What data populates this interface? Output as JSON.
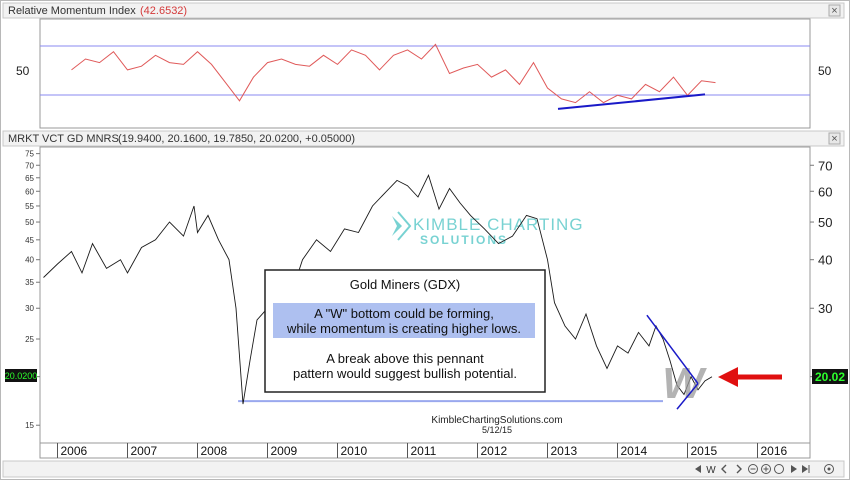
{
  "rmi_panel": {
    "title": "Relative Momentum Index",
    "value": "(42.6532)",
    "close_icon": "×",
    "axis_label_left": "50",
    "axis_label_right": "50"
  },
  "price_panel": {
    "title": "MRKT VCT GD MNRS",
    "ohlc": "(19.9400, 20.1600, 19.7850, 20.0200, +0.05000)",
    "close_icon": "×",
    "last_value_left": "20.0200",
    "last_value_right": "20.02"
  },
  "annotation": {
    "heading": "Gold Miners (GDX)",
    "highlight_line1": "A \"W\" bottom could be forming,",
    "highlight_line2": "while momentum is  creating higher lows.",
    "body_line1": "A break above this pennant",
    "body_line2": "pattern would suggest bullish potential."
  },
  "watermark": {
    "line1": "KIMBLE CHARTING",
    "line2": "SOLUTIONS"
  },
  "w_letter": "W",
  "credit": {
    "site": "KimbleChartingSolutions.com",
    "date": "5/12/15"
  },
  "toolbar": {
    "w_label": "W"
  },
  "colors": {
    "rmi_line": "#e05a5a",
    "price_line": "#1a1a1a",
    "trend_line": "#1a1ac8",
    "level_line": "#8a8af0",
    "support_line": "#9aa8ee",
    "arrow": "#e01010",
    "last_value_bg": "#111111",
    "last_value_fg": "#2cff2c",
    "highlight_bg": "#aec0f0",
    "watermark": "#4cc4c4"
  },
  "chart_data": [
    {
      "type": "line",
      "title": "Relative Momentum Index",
      "x_range": [
        2005.75,
        2016.75
      ],
      "y_range": [
        20,
        80
      ],
      "reference_lines": [
        60,
        40
      ],
      "tick_labels": [
        "50"
      ],
      "series": [
        {
          "name": "Relative Momentum Index",
          "x": [
            2006.2,
            2006.4,
            2006.6,
            2006.8,
            2007.0,
            2007.2,
            2007.4,
            2007.6,
            2007.8,
            2008.0,
            2008.2,
            2008.4,
            2008.6,
            2008.8,
            2009.0,
            2009.2,
            2009.4,
            2009.6,
            2009.8,
            2010.0,
            2010.2,
            2010.4,
            2010.6,
            2010.8,
            2011.0,
            2011.2,
            2011.4,
            2011.6,
            2011.8,
            2012.0,
            2012.2,
            2012.4,
            2012.6,
            2012.8,
            2013.0,
            2013.2,
            2013.4,
            2013.6,
            2013.8,
            2014.0,
            2014.2,
            2014.4,
            2014.6,
            2014.8,
            2015.0,
            2015.2,
            2015.4
          ],
          "y": [
            52,
            58,
            56,
            62,
            52,
            54,
            60,
            56,
            55,
            62,
            55,
            45,
            35,
            48,
            56,
            58,
            55,
            54,
            60,
            55,
            63,
            60,
            52,
            60,
            63,
            58,
            66,
            50,
            53,
            55,
            48,
            52,
            44,
            56,
            42,
            36,
            34,
            40,
            34,
            38,
            36,
            44,
            40,
            48,
            38,
            46,
            45
          ]
        },
        {
          "name": "Momentum trendline",
          "x": [
            2013.15,
            2015.25
          ],
          "y": [
            30.5,
            38.5
          ]
        }
      ]
    },
    {
      "type": "line",
      "title": "MRKT VCT GD MNRS",
      "x_range": [
        2005.75,
        2016.75
      ],
      "y_scale": "log",
      "y_range": [
        13.5,
        78
      ],
      "y_ticks_left": [
        15,
        20,
        25,
        30,
        35,
        40,
        45,
        50,
        55,
        60,
        65,
        70,
        75
      ],
      "y_ticks_right": [
        20,
        30,
        40,
        50,
        60,
        70
      ],
      "x_ticks": [
        "2006",
        "2007",
        "2008",
        "2009",
        "2010",
        "2011",
        "2012",
        "2013",
        "2014",
        "2015",
        "2016"
      ],
      "series": [
        {
          "name": "MRKT VCT GD MNRS",
          "x": [
            2005.8,
            2006.0,
            2006.2,
            2006.35,
            2006.5,
            2006.7,
            2006.9,
            2007.0,
            2007.2,
            2007.4,
            2007.6,
            2007.8,
            2007.95,
            2008.0,
            2008.15,
            2008.3,
            2008.45,
            2008.55,
            2008.65,
            2008.75,
            2008.85,
            2009.0,
            2009.15,
            2009.3,
            2009.5,
            2009.7,
            2009.9,
            2010.1,
            2010.3,
            2010.5,
            2010.7,
            2010.85,
            2011.0,
            2011.15,
            2011.3,
            2011.45,
            2011.6,
            2011.75,
            2011.9,
            2012.1,
            2012.3,
            2012.5,
            2012.7,
            2012.85,
            2013.0,
            2013.1,
            2013.25,
            2013.4,
            2013.55,
            2013.7,
            2013.85,
            2014.0,
            2014.15,
            2014.3,
            2014.45,
            2014.55,
            2014.65,
            2014.75,
            2014.85,
            2014.95,
            2015.05,
            2015.15,
            2015.25,
            2015.35
          ],
          "y": [
            36,
            39,
            42,
            37,
            44,
            38,
            40,
            37,
            43,
            45,
            50,
            46,
            55,
            47,
            52,
            45,
            40,
            30,
            17,
            22,
            28,
            30,
            34,
            31,
            40,
            45,
            42,
            48,
            47,
            55,
            60,
            64,
            62,
            58,
            66,
            54,
            61,
            56,
            52,
            48,
            44,
            46,
            52,
            51,
            40,
            31,
            27,
            25,
            29,
            24,
            21,
            24,
            23,
            26,
            24,
            27,
            25,
            22,
            19,
            18,
            20,
            18.5,
            19.5,
            20
          ]
        },
        {
          "name": "Pennant upper line",
          "x": [
            2014.42,
            2015.15
          ],
          "y": [
            28.8,
            19.2
          ]
        },
        {
          "name": "Pennant lower line",
          "x": [
            2014.85,
            2015.15
          ],
          "y": [
            16.5,
            19.2
          ]
        },
        {
          "name": "Support line",
          "x": [
            2008.58,
            2014.65
          ],
          "y": [
            17.3,
            17.3
          ]
        }
      ]
    }
  ]
}
